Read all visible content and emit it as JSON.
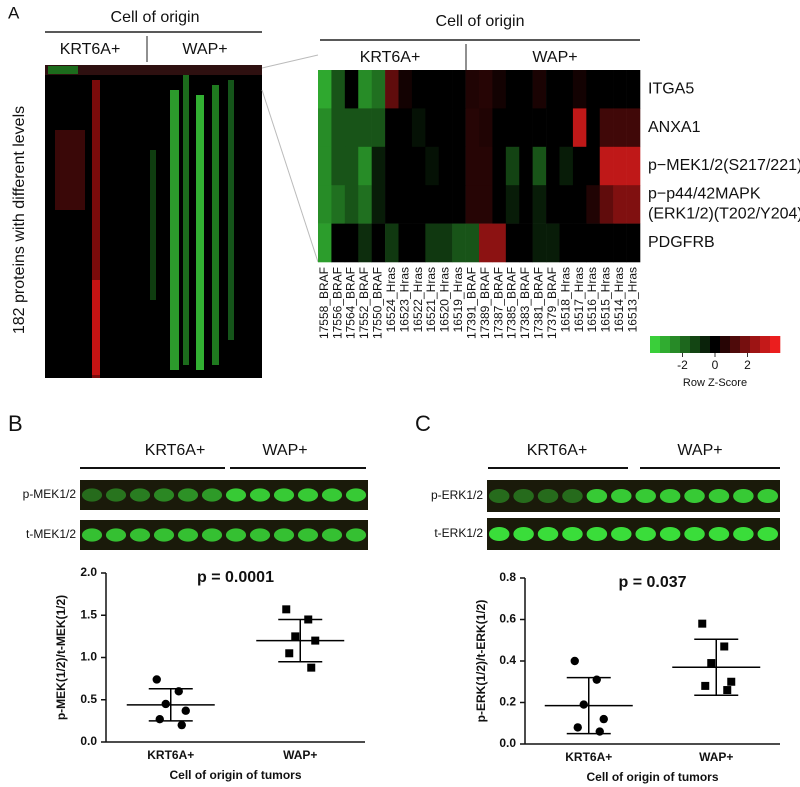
{
  "panel_labels": [
    "A",
    "B",
    "C"
  ],
  "overview": {
    "title": "Cell of origin",
    "groups": [
      "KRT6A+",
      "WAP+"
    ],
    "y_label": "182 proteins with different levels"
  },
  "blots": [
    {
      "groups": [
        "KRT6A+",
        "WAP+"
      ],
      "rows": [
        "p-MEK1/2",
        "t-MEK1/2"
      ]
    },
    {
      "groups": [
        "KRT6A+",
        "WAP+"
      ],
      "rows": [
        "p-ERK1/2",
        "t-ERK1/2"
      ]
    }
  ],
  "chart_data": [
    {
      "type": "heatmap",
      "title": "Cell of origin",
      "groups": [
        "KRT6A+",
        "WAP+"
      ],
      "categories": [
        "17558_BRAF",
        "17556_BRAF",
        "17564_BRAF",
        "17552_BRAF",
        "17550_BRAF",
        "16524_Hras",
        "16523_Hras",
        "16522_Hras",
        "16521_Hras",
        "16520_Hras",
        "16519_Hras",
        "17391_BRAF",
        "17389_BRAF",
        "17387_BRAF",
        "17385_BRAF",
        "17383_BRAF",
        "17381_BRAF",
        "17379_BRAF",
        "16518_Hras",
        "16517_Hras",
        "16516_Hras",
        "16515_Hras",
        "16514_Hras",
        "16513_Hras"
      ],
      "y_categories": [
        [
          "ITGA5"
        ],
        [
          "ANXA1"
        ],
        [
          "p−MEK1/2(S217/221)"
        ],
        [
          "p−p44/42MAPK",
          "(ERK1/2)(T202/Y204)"
        ],
        [
          "PDGFRB"
        ]
      ],
      "values": [
        [
          -3,
          -1.5,
          0,
          -2.5,
          -2,
          1.5,
          0.3,
          0,
          0,
          0,
          0,
          0.5,
          0.6,
          0.3,
          0,
          0,
          0.4,
          0,
          0,
          0.3,
          0,
          0,
          0,
          0
        ],
        [
          -2.5,
          -1.5,
          -1.5,
          -1.5,
          -1.5,
          0,
          0,
          -0.3,
          0,
          0,
          0,
          0.6,
          0.5,
          0,
          0,
          0,
          0,
          0,
          0,
          3,
          0,
          1,
          1,
          1
        ],
        [
          -2.5,
          -1.5,
          -1.5,
          -2.5,
          -0.5,
          0,
          0,
          0,
          -0.3,
          0,
          0,
          0.6,
          0.6,
          0,
          -1.2,
          0,
          -1.5,
          0,
          -0.5,
          0,
          0,
          3,
          3,
          3
        ],
        [
          -2.5,
          -2,
          -1.5,
          -2,
          -0.5,
          0,
          0,
          0,
          0,
          0,
          0,
          0.6,
          0.6,
          0,
          -0.5,
          0,
          -0.5,
          0,
          0,
          0,
          0.5,
          1.5,
          2,
          2
        ],
        [
          -2.8,
          0,
          0,
          -0.8,
          0,
          -1,
          0,
          0,
          -1,
          -1,
          -1.5,
          -1.5,
          2.2,
          2.2,
          0,
          0,
          -0.5,
          -0.5,
          0,
          0,
          0,
          0,
          0,
          0
        ]
      ],
      "zlim": [
        -4,
        4
      ],
      "zticks": [
        -2,
        0,
        2
      ],
      "colorbar_label": "Row Z-Score",
      "colors": {
        "low": "#3fe03f",
        "mid": "#000000",
        "high": "#ff2020"
      }
    },
    {
      "type": "dot",
      "title": "p = 0.0001",
      "categories": [
        "KRT6A+",
        "WAP+"
      ],
      "groups": [
        {
          "marker": "circle",
          "values": [
            0.74,
            0.6,
            0.45,
            0.37,
            0.27,
            0.2
          ],
          "mean": 0.44,
          "sd": 0.19
        },
        {
          "marker": "square",
          "values": [
            1.57,
            1.45,
            1.25,
            1.2,
            1.05,
            0.88
          ],
          "mean": 1.2,
          "sd": 0.25
        }
      ],
      "ylim": [
        0,
        2.0
      ],
      "yticks": [
        {
          "value": 0,
          "label": "0.0"
        },
        0.5,
        {
          "value": 1,
          "label": "1.0"
        },
        1.5,
        {
          "value": 2,
          "label": "2.0"
        }
      ],
      "ylabel": "p-MEK(1/2)/t-MEK(1/2)",
      "xlabel": "Cell of origin of tumors",
      "color": "#000000"
    },
    {
      "type": "dot",
      "title": "p = 0.037",
      "categories": [
        "KRT6A+",
        "WAP+"
      ],
      "groups": [
        {
          "marker": "circle",
          "values": [
            0.4,
            0.31,
            0.19,
            0.12,
            0.08,
            0.06
          ],
          "mean": 0.185,
          "sd": 0.135
        },
        {
          "marker": "square",
          "values": [
            0.58,
            0.47,
            0.39,
            0.3,
            0.28,
            0.26
          ],
          "mean": 0.37,
          "sd": 0.135
        }
      ],
      "ylim": [
        0,
        0.8
      ],
      "yticks": [
        {
          "value": 0,
          "label": "0.0"
        },
        0.2,
        0.4,
        0.6,
        0.8
      ],
      "ylabel": "p-ERK(1/2)/t-ERK(1/2)",
      "xlabel": "Cell of origin of tumors",
      "color": "#000000"
    }
  ]
}
